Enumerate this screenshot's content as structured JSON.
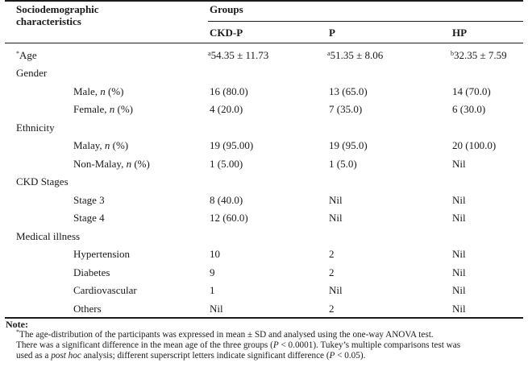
{
  "header": {
    "characteristics_line1": "Sociodemographic",
    "characteristics_line2": "characteristics",
    "groups": "Groups",
    "columns": [
      "CKD-P",
      "P",
      "HP"
    ]
  },
  "rows": [
    {
      "label_prefix": "*",
      "label": "Age",
      "v1_sup": "a",
      "v1": "54.35 ± 11.73",
      "v2_sup": "a",
      "v2": "51.35 ± 8.06",
      "v3_sup": "b",
      "v3": "32.35 ± 7.59"
    },
    {
      "label": "Gender"
    },
    {
      "label": "Male, ",
      "label_italic": "n",
      "label_suffix": " (%)",
      "v1": "16 (80.0)",
      "v2": "13 (65.0)",
      "v3": "14 (70.0)"
    },
    {
      "label": "Female, ",
      "label_italic": "n",
      "label_suffix": " (%)",
      "v1": "4 (20.0)",
      "v2": "7 (35.0)",
      "v3": "6 (30.0)"
    },
    {
      "label": "Ethnicity"
    },
    {
      "label": "Malay, ",
      "label_italic": "n",
      "label_suffix": " (%)",
      "v1": "19 (95.00)",
      "v2": "19 (95.0)",
      "v3": "20 (100.0)"
    },
    {
      "label": "Non-Malay, ",
      "label_italic": "n",
      "label_suffix": " (%)",
      "v1": "1 (5.00)",
      "v2": "1 (5.0)",
      "v3": "Nil"
    },
    {
      "label": "CKD Stages"
    },
    {
      "label": "Stage 3",
      "v1": "8 (40.0)",
      "v2": "Nil",
      "v3": "Nil"
    },
    {
      "label": "Stage 4",
      "v1": "12 (60.0)",
      "v2": "Nil",
      "v3": "Nil"
    },
    {
      "label": "Medical illness"
    },
    {
      "label": "Hypertension",
      "v1": "10",
      "v2": "2",
      "v3": "Nil"
    },
    {
      "label": "Diabetes",
      "v1": "9",
      "v2": "2",
      "v3": "Nil"
    },
    {
      "label": "Cardiovascular",
      "v1": "1",
      "v2": "Nil",
      "v3": "Nil"
    },
    {
      "label": "Others",
      "v1": "Nil",
      "v2": "2",
      "v3": "Nil"
    }
  ],
  "note": {
    "title": "Note:",
    "sup": "*",
    "line1": "The age-distribution of the participants was expressed in mean ± SD and analysed using the one-way ANOVA test.",
    "line2a": "There was a significant difference in the mean age of the three groups (",
    "line2_p": "P",
    "line2b": " < 0.0001). Tukey’s multiple comparisons test was",
    "line3a": "used as a ",
    "line3_italic": "post hoc",
    "line3b": " analysis; different superscript letters indicate significant difference (",
    "line3_p": "P",
    "line3c": " < 0.05)."
  }
}
